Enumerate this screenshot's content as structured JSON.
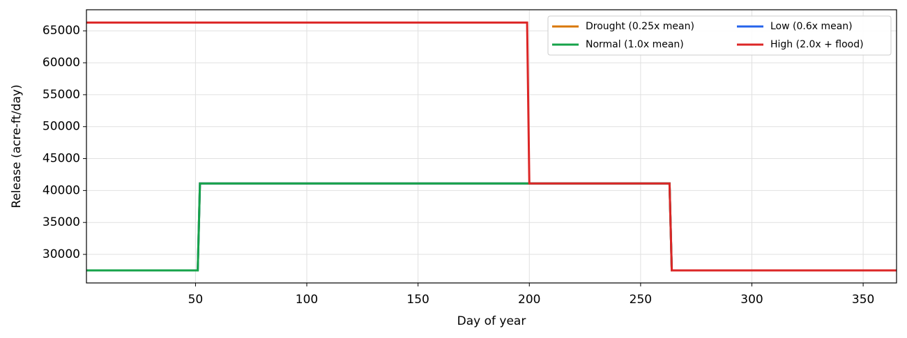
{
  "chart_data": {
    "type": "line",
    "xlabel": "Day of year",
    "ylabel": "Release (acre-ft/day)",
    "x": [
      1,
      51,
      52,
      199,
      200,
      263,
      264,
      365
    ],
    "series": [
      {
        "name": "Drought (0.25x mean)",
        "color": "#d97706",
        "values": [
          27500,
          27500,
          41100,
          41100,
          41100,
          41100,
          27500,
          27500
        ]
      },
      {
        "name": "Low (0.6x mean)",
        "color": "#2563eb",
        "values": [
          27500,
          27500,
          41100,
          41100,
          41100,
          41100,
          27500,
          27500
        ]
      },
      {
        "name": "Normal (1.0x mean)",
        "color": "#16a34a",
        "values": [
          27500,
          27500,
          41100,
          41100,
          41100,
          41100,
          27500,
          27500
        ]
      },
      {
        "name": "High (2.0x + flood)",
        "color": "#dc2626",
        "values": [
          66300,
          66300,
          66300,
          66300,
          41100,
          41100,
          27500,
          27500
        ]
      }
    ],
    "xlim": [
      1,
      365
    ],
    "ylim": [
      25530,
      68300
    ],
    "xticks": [
      50,
      100,
      150,
      200,
      250,
      300,
      350
    ],
    "yticks": [
      30000,
      35000,
      40000,
      45000,
      50000,
      55000,
      60000,
      65000
    ],
    "grid": true,
    "legend": "upper-right"
  }
}
